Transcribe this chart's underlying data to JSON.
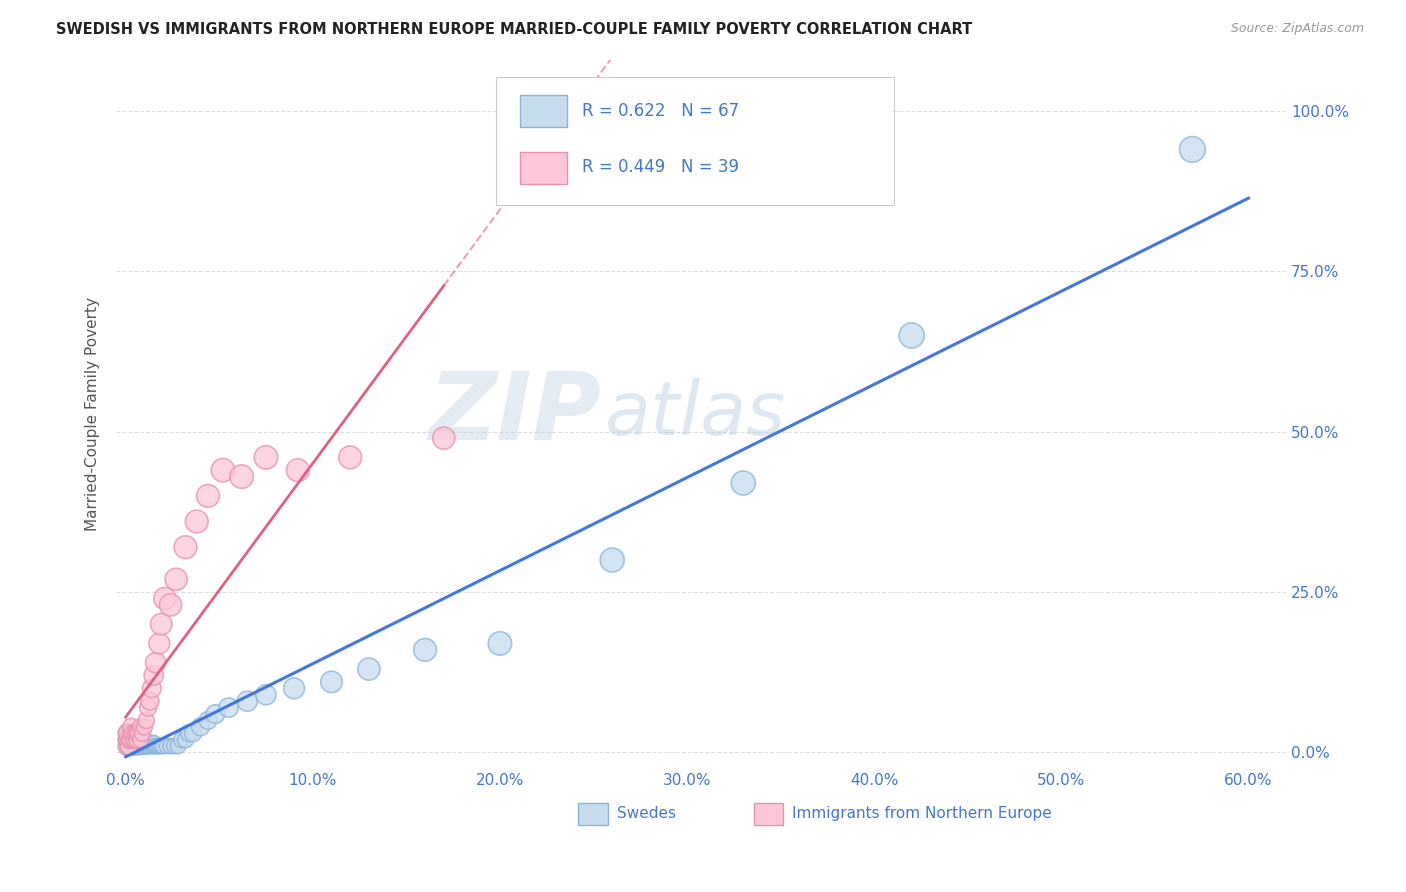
{
  "title": "SWEDISH VS IMMIGRANTS FROM NORTHERN EUROPE MARRIED-COUPLE FAMILY POVERTY CORRELATION CHART",
  "source": "Source: ZipAtlas.com",
  "xlabel_swedes": "Swedes",
  "xlabel_immigrants": "Immigrants from Northern Europe",
  "ylabel": "Married-Couple Family Poverty",
  "watermark_zip": "ZIP",
  "watermark_atlas": "atlas",
  "r_swedes": 0.622,
  "n_swedes": 67,
  "r_immigrants": 0.449,
  "n_immigrants": 39,
  "xlim": [
    -0.005,
    0.62
  ],
  "ylim": [
    -0.025,
    1.08
  ],
  "xticks": [
    0.0,
    0.1,
    0.2,
    0.3,
    0.4,
    0.5,
    0.6
  ],
  "xticklabels": [
    "0.0%",
    "10.0%",
    "20.0%",
    "30.0%",
    "40.0%",
    "50.0%",
    "60.0%"
  ],
  "yticks": [
    0.0,
    0.25,
    0.5,
    0.75,
    1.0
  ],
  "yticklabels": [
    "0.0%",
    "25.0%",
    "50.0%",
    "75.0%",
    "100.0%"
  ],
  "color_swedes_fill": "#c8dcf0",
  "color_swedes_edge": "#8ab4d8",
  "color_swedes_line": "#4477dd",
  "color_immigrants_fill": "#fcc8d8",
  "color_immigrants_edge": "#e890a8",
  "color_immigrants_line": "#e06080",
  "color_text_blue": "#4477cc",
  "background": "#ffffff",
  "grid_color": "#dddddd",
  "swedes_x": [
    0.001,
    0.001,
    0.001,
    0.002,
    0.002,
    0.002,
    0.002,
    0.003,
    0.003,
    0.003,
    0.003,
    0.004,
    0.004,
    0.004,
    0.004,
    0.005,
    0.005,
    0.005,
    0.006,
    0.006,
    0.006,
    0.007,
    0.007,
    0.008,
    0.008,
    0.008,
    0.009,
    0.009,
    0.01,
    0.01,
    0.01,
    0.011,
    0.012,
    0.012,
    0.013,
    0.013,
    0.014,
    0.015,
    0.015,
    0.016,
    0.017,
    0.018,
    0.019,
    0.02,
    0.022,
    0.024,
    0.026,
    0.028,
    0.03,
    0.032,
    0.034,
    0.036,
    0.04,
    0.044,
    0.048,
    0.055,
    0.065,
    0.075,
    0.09,
    0.11,
    0.13,
    0.16,
    0.2,
    0.26,
    0.33,
    0.42,
    0.57
  ],
  "swedes_y": [
    0.01,
    0.02,
    0.03,
    0.01,
    0.015,
    0.02,
    0.03,
    0.01,
    0.015,
    0.02,
    0.03,
    0.01,
    0.015,
    0.02,
    0.025,
    0.01,
    0.015,
    0.02,
    0.01,
    0.015,
    0.02,
    0.01,
    0.015,
    0.01,
    0.015,
    0.02,
    0.01,
    0.015,
    0.01,
    0.015,
    0.02,
    0.01,
    0.01,
    0.015,
    0.01,
    0.015,
    0.01,
    0.01,
    0.015,
    0.01,
    0.01,
    0.01,
    0.01,
    0.01,
    0.01,
    0.01,
    0.01,
    0.01,
    0.02,
    0.02,
    0.03,
    0.03,
    0.04,
    0.05,
    0.06,
    0.07,
    0.08,
    0.09,
    0.1,
    0.11,
    0.13,
    0.16,
    0.17,
    0.3,
    0.42,
    0.65,
    0.94
  ],
  "swedes_size": [
    60,
    60,
    60,
    60,
    60,
    55,
    55,
    55,
    55,
    55,
    50,
    55,
    55,
    50,
    50,
    55,
    50,
    50,
    50,
    50,
    45,
    50,
    45,
    50,
    45,
    45,
    45,
    45,
    45,
    45,
    40,
    40,
    40,
    40,
    40,
    40,
    40,
    40,
    40,
    40,
    40,
    40,
    40,
    40,
    40,
    40,
    40,
    40,
    45,
    45,
    50,
    50,
    55,
    55,
    60,
    65,
    70,
    70,
    75,
    80,
    85,
    90,
    95,
    100,
    100,
    110,
    115
  ],
  "immigrants_x": [
    0.001,
    0.001,
    0.001,
    0.002,
    0.002,
    0.003,
    0.003,
    0.003,
    0.004,
    0.004,
    0.005,
    0.005,
    0.006,
    0.006,
    0.007,
    0.008,
    0.008,
    0.009,
    0.01,
    0.011,
    0.012,
    0.013,
    0.014,
    0.015,
    0.016,
    0.018,
    0.019,
    0.021,
    0.024,
    0.027,
    0.032,
    0.038,
    0.044,
    0.052,
    0.062,
    0.075,
    0.092,
    0.12,
    0.17
  ],
  "immigrants_y": [
    0.01,
    0.02,
    0.03,
    0.01,
    0.02,
    0.02,
    0.03,
    0.04,
    0.02,
    0.03,
    0.02,
    0.03,
    0.02,
    0.03,
    0.03,
    0.02,
    0.04,
    0.03,
    0.04,
    0.05,
    0.07,
    0.08,
    0.1,
    0.12,
    0.14,
    0.17,
    0.2,
    0.24,
    0.23,
    0.27,
    0.32,
    0.36,
    0.4,
    0.44,
    0.43,
    0.46,
    0.44,
    0.46,
    0.49
  ],
  "immigrants_size": [
    55,
    55,
    55,
    55,
    50,
    55,
    50,
    50,
    50,
    50,
    50,
    45,
    45,
    45,
    45,
    45,
    45,
    45,
    45,
    45,
    50,
    55,
    60,
    65,
    70,
    75,
    80,
    85,
    85,
    85,
    90,
    90,
    90,
    95,
    95,
    95,
    90,
    90,
    85
  ]
}
